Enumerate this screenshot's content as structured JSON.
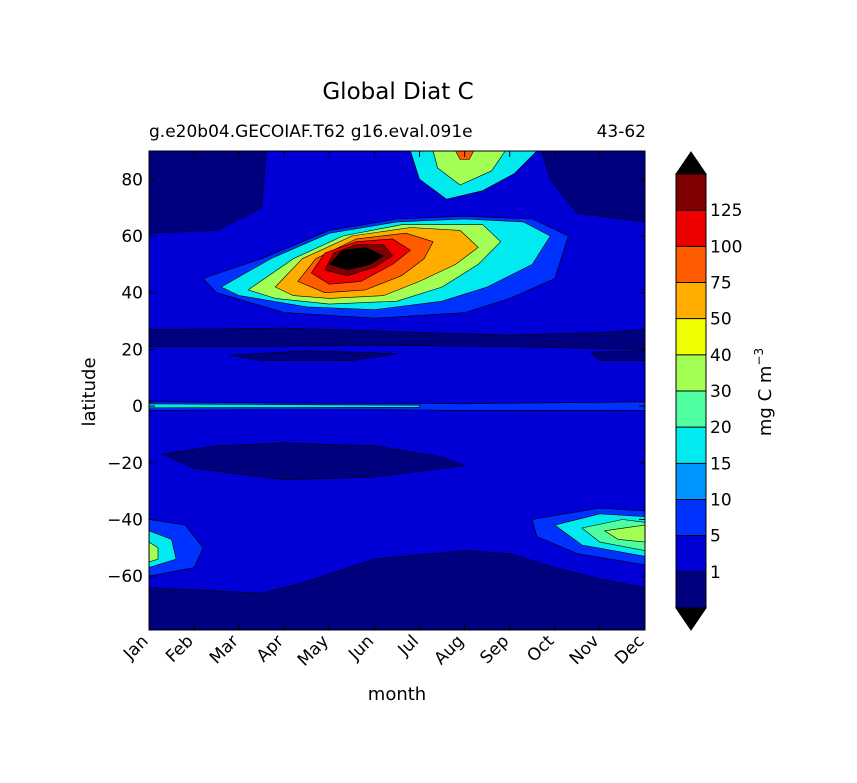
{
  "chart_data": {
    "type": "heatmap",
    "title": "Global Diat C",
    "subtitle_left": "g.e20b04.GECOIAF.T62 g16.eval.091e",
    "subtitle_right": "43-62",
    "xlabel": "month",
    "ylabel": "latitude",
    "x_tick_labels": [
      "Jan",
      "Feb",
      "Mar",
      "Apr",
      "May",
      "Jun",
      "Jul",
      "Aug",
      "Sep",
      "Oct",
      "Nov",
      "Dec"
    ],
    "y_ticks": [
      80,
      60,
      40,
      20,
      0,
      -20,
      -40,
      -60
    ],
    "y_tick_labels": [
      "80",
      "60",
      "40",
      "20",
      "0",
      "−20",
      "−40",
      "−60"
    ],
    "xlim": [
      1,
      12
    ],
    "ylim": [
      -79,
      90
    ],
    "colorbar": {
      "label": "mg C m",
      "label_superscript": "−3",
      "extend": "both",
      "tick_labels": [
        "1",
        "5",
        "10",
        "15",
        "20",
        "30",
        "40",
        "50",
        "75",
        "100",
        "125"
      ],
      "colors": [
        "#00007f",
        "#0000d6",
        "#0032ff",
        "#0096ff",
        "#00eaf0",
        "#4dff9f",
        "#a3ff53",
        "#f0ff00",
        "#ffae00",
        "#ff5b00",
        "#ee0000",
        "#7f0000"
      ],
      "under_color": "#000000",
      "over_color": "#000000"
    },
    "background_color": "#0000d6",
    "features": [
      {
        "name": "northern-ocean",
        "level": 0,
        "points": [
          [
            1,
            90
          ],
          [
            3.6,
            90
          ],
          [
            3.5,
            70
          ],
          [
            2.5,
            62
          ],
          [
            1,
            61
          ]
        ]
      },
      {
        "name": "northern-ocean-east",
        "level": 0,
        "points": [
          [
            9.7,
            90
          ],
          [
            12,
            90
          ],
          [
            12,
            65
          ],
          [
            10.5,
            68
          ],
          [
            9.9,
            80
          ]
        ]
      },
      {
        "name": "subtropical-band-north",
        "level": 0,
        "points": [
          [
            1,
            27
          ],
          [
            4,
            27.5
          ],
          [
            7,
            26
          ],
          [
            9,
            25
          ],
          [
            11,
            26
          ],
          [
            12,
            27
          ],
          [
            12,
            20
          ],
          [
            9,
            21
          ],
          [
            6,
            21.5
          ],
          [
            3,
            21
          ],
          [
            1,
            21
          ]
        ]
      },
      {
        "name": "subtropical-spot-north-a",
        "level": 0,
        "points": [
          [
            2.8,
            18
          ],
          [
            4.5,
            19.5
          ],
          [
            6.5,
            18.5
          ],
          [
            5.5,
            16
          ],
          [
            3.5,
            16
          ]
        ]
      },
      {
        "name": "subtropical-spot-north-b",
        "level": 0,
        "points": [
          [
            10.8,
            19
          ],
          [
            12,
            19.5
          ],
          [
            12,
            16
          ],
          [
            11,
            16
          ]
        ]
      },
      {
        "name": "subtropical-band-south",
        "level": 0,
        "points": [
          [
            1.3,
            -17
          ],
          [
            2.5,
            -14
          ],
          [
            4,
            -13
          ],
          [
            6,
            -14
          ],
          [
            7.5,
            -18
          ],
          [
            8,
            -21
          ],
          [
            6,
            -25
          ],
          [
            4,
            -26
          ],
          [
            2,
            -22
          ]
        ]
      },
      {
        "name": "southern-ocean",
        "level": 0,
        "points": [
          [
            1,
            -64
          ],
          [
            3.5,
            -66
          ],
          [
            4.5,
            -62
          ],
          [
            6,
            -54
          ],
          [
            8,
            -51
          ],
          [
            9,
            -52
          ],
          [
            10,
            -57
          ],
          [
            11,
            -61
          ],
          [
            12,
            -64
          ],
          [
            12,
            -79
          ],
          [
            1,
            -79
          ]
        ]
      },
      {
        "name": "nh-bloom-l1",
        "level": 2,
        "points": [
          [
            2.2,
            45
          ],
          [
            3.5,
            52
          ],
          [
            5,
            62
          ],
          [
            6.5,
            66
          ],
          [
            8,
            67
          ],
          [
            9.5,
            66
          ],
          [
            10.3,
            60
          ],
          [
            10,
            45
          ],
          [
            9,
            38
          ],
          [
            8,
            33
          ],
          [
            6,
            31
          ],
          [
            4,
            33
          ],
          [
            2.5,
            40
          ]
        ]
      },
      {
        "name": "nh-bloom-l2",
        "level": 4,
        "points": [
          [
            2.6,
            42
          ],
          [
            3.7,
            52
          ],
          [
            5,
            61
          ],
          [
            6.5,
            65
          ],
          [
            8,
            66
          ],
          [
            9.3,
            65
          ],
          [
            9.9,
            60
          ],
          [
            9.5,
            50
          ],
          [
            8.5,
            42
          ],
          [
            7.5,
            37
          ],
          [
            6,
            34
          ],
          [
            4.5,
            35
          ],
          [
            3,
            39
          ]
        ]
      },
      {
        "name": "nh-bloom-l3",
        "level": 6,
        "points": [
          [
            3.2,
            41
          ],
          [
            4.2,
            52
          ],
          [
            5.3,
            60
          ],
          [
            6.6,
            64
          ],
          [
            8.4,
            64
          ],
          [
            8.8,
            58
          ],
          [
            8.3,
            50
          ],
          [
            7.5,
            42
          ],
          [
            6.5,
            37
          ],
          [
            5,
            36
          ],
          [
            3.8,
            38
          ]
        ]
      },
      {
        "name": "nh-bloom-l4",
        "level": 8,
        "points": [
          [
            3.8,
            42
          ],
          [
            4.4,
            52
          ],
          [
            5.5,
            60
          ],
          [
            6.8,
            63
          ],
          [
            7.9,
            62
          ],
          [
            8.3,
            56
          ],
          [
            7.8,
            50
          ],
          [
            7,
            44
          ],
          [
            6.2,
            39
          ],
          [
            5,
            38
          ],
          [
            4.2,
            39
          ]
        ]
      },
      {
        "name": "nh-bloom-l5",
        "level": 9,
        "points": [
          [
            4.3,
            44
          ],
          [
            4.7,
            52
          ],
          [
            5.6,
            59
          ],
          [
            6.7,
            61
          ],
          [
            7.3,
            58
          ],
          [
            7.1,
            52
          ],
          [
            6.6,
            46
          ],
          [
            5.8,
            41
          ],
          [
            4.9,
            40
          ]
        ]
      },
      {
        "name": "nh-bloom-l6",
        "level": 10,
        "points": [
          [
            4.6,
            47
          ],
          [
            4.9,
            54
          ],
          [
            5.6,
            58
          ],
          [
            6.4,
            59
          ],
          [
            6.8,
            55
          ],
          [
            6.4,
            50
          ],
          [
            5.7,
            44
          ],
          [
            5,
            43
          ]
        ]
      },
      {
        "name": "nh-bloom-l7",
        "level": 11,
        "points": [
          [
            4.9,
            48
          ],
          [
            5.1,
            54
          ],
          [
            5.6,
            57
          ],
          [
            6.2,
            57
          ],
          [
            6.4,
            53
          ],
          [
            6,
            49
          ],
          [
            5.4,
            46
          ]
        ]
      },
      {
        "name": "nh-bloom-core",
        "level": 12,
        "points": [
          [
            5,
            50
          ],
          [
            5.3,
            55
          ],
          [
            5.8,
            56
          ],
          [
            6.2,
            53
          ],
          [
            5.9,
            50
          ],
          [
            5.4,
            48
          ]
        ]
      },
      {
        "name": "arctic-jul-l1",
        "level": 4,
        "points": [
          [
            6.8,
            90
          ],
          [
            9.6,
            90
          ],
          [
            9.1,
            82
          ],
          [
            8.4,
            76
          ],
          [
            7.6,
            73
          ],
          [
            7,
            80
          ]
        ]
      },
      {
        "name": "arctic-jul-l2",
        "level": 6,
        "points": [
          [
            7.3,
            90
          ],
          [
            8.9,
            90
          ],
          [
            8.6,
            83
          ],
          [
            7.9,
            78
          ],
          [
            7.4,
            84
          ]
        ]
      },
      {
        "name": "arctic-jul-l3",
        "level": 9,
        "points": [
          [
            7.8,
            90
          ],
          [
            8.2,
            90
          ],
          [
            8.1,
            87
          ],
          [
            7.9,
            87
          ]
        ]
      },
      {
        "name": "equator-l1",
        "level": 2,
        "points": [
          [
            1,
            1.5
          ],
          [
            5,
            1
          ],
          [
            8,
            0.8
          ],
          [
            12,
            1.5
          ],
          [
            12,
            -1.5
          ],
          [
            8,
            -1.5
          ],
          [
            5,
            -1.2
          ],
          [
            1,
            -1.5
          ]
        ]
      },
      {
        "name": "equator-l2",
        "level": 4,
        "points": [
          [
            1,
            0.8
          ],
          [
            4,
            0.5
          ],
          [
            7,
            0.3
          ],
          [
            7,
            -0.4
          ],
          [
            4,
            -0.5
          ],
          [
            1,
            -0.6
          ]
        ]
      },
      {
        "name": "so-west-l1",
        "level": 2,
        "points": [
          [
            1,
            -40
          ],
          [
            1.8,
            -42
          ],
          [
            2.2,
            -50
          ],
          [
            2,
            -57
          ],
          [
            1,
            -60
          ]
        ]
      },
      {
        "name": "so-west-l2",
        "level": 4,
        "points": [
          [
            1,
            -44
          ],
          [
            1.5,
            -47
          ],
          [
            1.6,
            -54
          ],
          [
            1,
            -57
          ]
        ]
      },
      {
        "name": "so-west-l3",
        "level": 6,
        "points": [
          [
            1,
            -48
          ],
          [
            1.2,
            -50
          ],
          [
            1.2,
            -54
          ],
          [
            1,
            -55
          ]
        ]
      },
      {
        "name": "so-east-l1",
        "level": 2,
        "points": [
          [
            9.5,
            -40
          ],
          [
            11,
            -36
          ],
          [
            12,
            -37
          ],
          [
            12,
            -56
          ],
          [
            10.5,
            -52
          ],
          [
            9.6,
            -46
          ]
        ]
      },
      {
        "name": "so-east-l2",
        "level": 4,
        "points": [
          [
            10,
            -42
          ],
          [
            11,
            -38
          ],
          [
            12,
            -39
          ],
          [
            12,
            -53
          ],
          [
            10.6,
            -49
          ]
        ]
      },
      {
        "name": "so-east-l3",
        "level": 5,
        "points": [
          [
            10.6,
            -43
          ],
          [
            11.5,
            -40
          ],
          [
            12,
            -41
          ],
          [
            12,
            -51
          ],
          [
            11,
            -48
          ]
        ]
      },
      {
        "name": "so-east-l4",
        "level": 6,
        "points": [
          [
            11.1,
            -44
          ],
          [
            12,
            -42
          ],
          [
            12,
            -48
          ],
          [
            11.4,
            -47
          ]
        ]
      }
    ]
  }
}
